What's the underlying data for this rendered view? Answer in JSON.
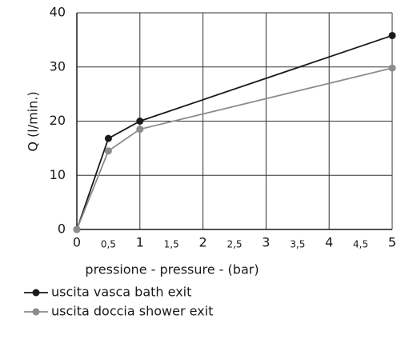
{
  "chart_data": {
    "type": "line",
    "xlabel": "pressione - pressure - (bar)",
    "ylabel": "Q (l/min.)",
    "x": [
      0,
      0.5,
      1,
      5
    ],
    "series": [
      {
        "name": "uscita vasca bath exit",
        "color": "#1a1a1a",
        "values": [
          0,
          16.8,
          20,
          35.8
        ]
      },
      {
        "name": "uscita doccia shower exit",
        "color": "#8c8c8c",
        "values": [
          0,
          14.5,
          18.5,
          29.8
        ]
      }
    ],
    "xlim": [
      0,
      5
    ],
    "xticks": [
      0,
      {
        "value": 0.5,
        "label": "0,5"
      },
      1,
      {
        "value": 1.5,
        "label": "1,5"
      },
      2,
      {
        "value": 2.5,
        "label": "2,5"
      },
      3,
      {
        "value": 3.5,
        "label": "3,5"
      },
      4,
      {
        "value": 4.5,
        "label": "4,5"
      },
      5
    ],
    "ylim": [
      0,
      40
    ],
    "yticks": [
      0,
      10,
      20,
      30,
      40
    ],
    "grid": true
  }
}
